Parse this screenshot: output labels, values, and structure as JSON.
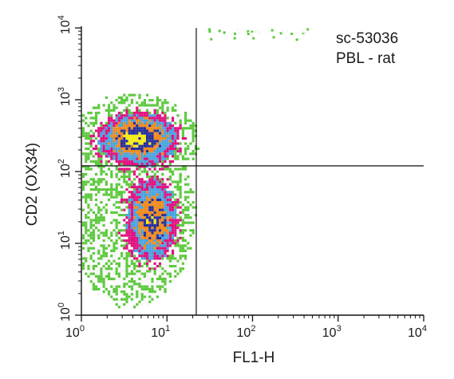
{
  "chart_data": {
    "type": "heatmap",
    "subtype": "flow-cytometry-density-plot",
    "xlabel": "FL1-H",
    "ylabel": "CD2 (OX34)",
    "xscale": "log",
    "yscale": "log",
    "xlim": [
      1,
      10000
    ],
    "ylim": [
      1,
      10000
    ],
    "x_ticks": [
      {
        "value": 1,
        "base": "10",
        "exp": "0"
      },
      {
        "value": 10,
        "base": "10",
        "exp": "1"
      },
      {
        "value": 100,
        "base": "10",
        "exp": "2"
      },
      {
        "value": 1000,
        "base": "10",
        "exp": "3"
      },
      {
        "value": 10000,
        "base": "10",
        "exp": "4"
      }
    ],
    "y_ticks": [
      {
        "value": 1,
        "base": "10",
        "exp": "0"
      },
      {
        "value": 10,
        "base": "10",
        "exp": "1"
      },
      {
        "value": 100,
        "base": "10",
        "exp": "2"
      },
      {
        "value": 1000,
        "base": "10",
        "exp": "3"
      },
      {
        "value": 10000,
        "base": "10",
        "exp": "4"
      }
    ],
    "quadrant_gates": {
      "x": 22,
      "y": 120
    },
    "annotations": [
      "sc-53036",
      "PBL - rat"
    ],
    "grid": false,
    "density_colors": [
      "#5cc93d",
      "#f7f7f7",
      "#e0117f",
      "#4aa3df",
      "#f08a1d",
      "#25309c",
      "#f5ec16"
    ],
    "populations": [
      {
        "center_x": 4.5,
        "center_y": 300,
        "spread_log_x": 0.22,
        "spread_log_y": 0.17,
        "peak": 1.0
      },
      {
        "center_x": 6.5,
        "center_y": 22,
        "spread_log_x": 0.14,
        "spread_log_y": 0.28,
        "peak": 0.78
      }
    ]
  }
}
